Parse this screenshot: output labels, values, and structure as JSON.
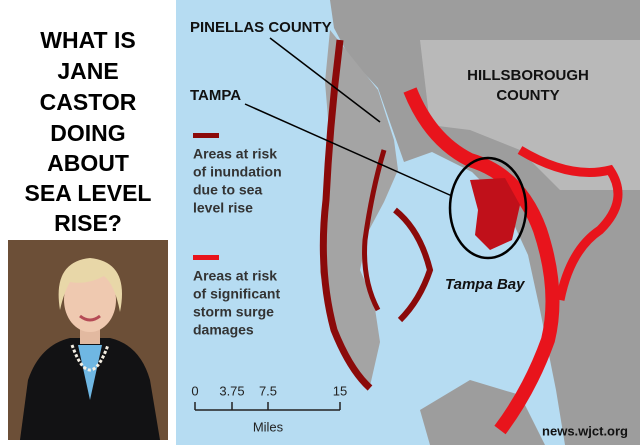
{
  "headline": [
    "WHAT IS",
    "JANE",
    "CASTOR",
    "DOING",
    "ABOUT",
    "SEA LEVEL",
    "RISE?"
  ],
  "map": {
    "labels": {
      "pinellas": "PINELLAS COUNTY",
      "tampa": "TAMPA",
      "hillsborough": [
        "HILLSBOROUGH",
        "COUNTY"
      ],
      "bay": "Tampa Bay"
    },
    "legend": [
      {
        "color": "#8b0a0a",
        "lines": [
          "Areas at risk",
          "of inundation",
          "due to sea",
          "level rise"
        ]
      },
      {
        "color": "#e8141c",
        "lines": [
          "Areas at risk",
          "of significant",
          "storm surge",
          "damages"
        ]
      }
    ],
    "scale": {
      "ticks": [
        "0",
        "3.75",
        "7.5",
        "15"
      ],
      "unit": "Miles"
    }
  },
  "credit": "news.wjct.org"
}
